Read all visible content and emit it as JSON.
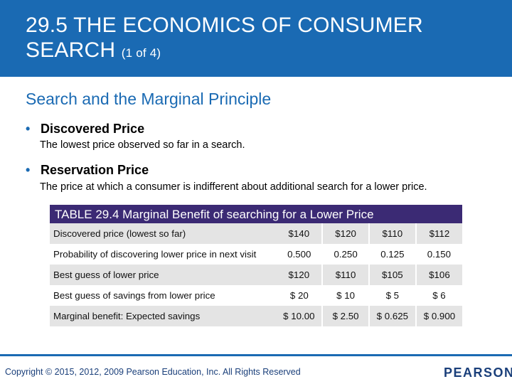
{
  "slide": {
    "title": "29.5 THE ECONOMICS OF CONSUMER SEARCH",
    "title_suffix": "(1 of 4)",
    "subtitle": "Search and the Marginal Principle",
    "bullets": [
      {
        "term": "Discovered Price",
        "definition": "The lowest price observed so far in a search."
      },
      {
        "term": "Reservation Price",
        "definition": "The price at which a consumer is indifferent about additional search for a lower price."
      }
    ]
  },
  "table": {
    "caption": "TABLE 29.4 Marginal Benefit of searching for a Lower Price",
    "rows": [
      {
        "label": "Discovered price (lowest so far)",
        "values": [
          "$140",
          "$120",
          "$110",
          "$112"
        ]
      },
      {
        "label": "Probability of discovering lower price in next visit",
        "values": [
          "0.500",
          "0.250",
          "0.125",
          "0.150"
        ]
      },
      {
        "label": "Best guess of lower price",
        "values": [
          "$120",
          "$110",
          "$105",
          "$106"
        ]
      },
      {
        "label": "Best guess of savings from lower price",
        "values": [
          "$ 20",
          "$ 10",
          "$ 5",
          "$ 6"
        ]
      },
      {
        "label": "Marginal benefit: Expected savings",
        "values": [
          "$ 10.00",
          "$ 2.50",
          "$ 0.625",
          "$ 0.900"
        ]
      }
    ]
  },
  "footer": {
    "copyright": "Copyright © 2015, 2012, 2009 Pearson Education, Inc. All Rights Reserved",
    "logo_text": "PEARSON"
  },
  "colors": {
    "header_blue": "#1a6ab3",
    "caption_purple": "#3b2a74",
    "row_shade": "#e4e4e4"
  }
}
